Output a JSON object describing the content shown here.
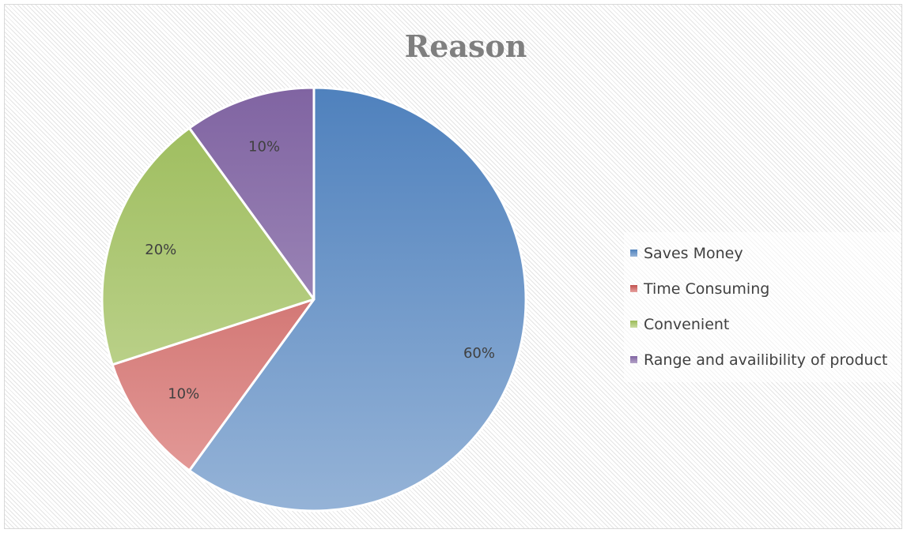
{
  "chart_data": {
    "type": "pie",
    "title": "Reason",
    "categories": [
      "Saves Money",
      "Time Consuming",
      "Convenient",
      "Range and availibility of product"
    ],
    "values": [
      60,
      10,
      20,
      10
    ],
    "data_labels": [
      "60%",
      "10%",
      "20%",
      "10%"
    ],
    "colors": [
      {
        "dark": "#4f81bd",
        "light": "#95b3d7"
      },
      {
        "dark": "#c0504d",
        "light": "#e6a09e"
      },
      {
        "dark": "#9bbb59",
        "light": "#c9dba0"
      },
      {
        "dark": "#8064a2",
        "light": "#b3a2c7"
      }
    ],
    "legend_position": "right",
    "start_angle_deg": 0,
    "direction": "clockwise"
  }
}
